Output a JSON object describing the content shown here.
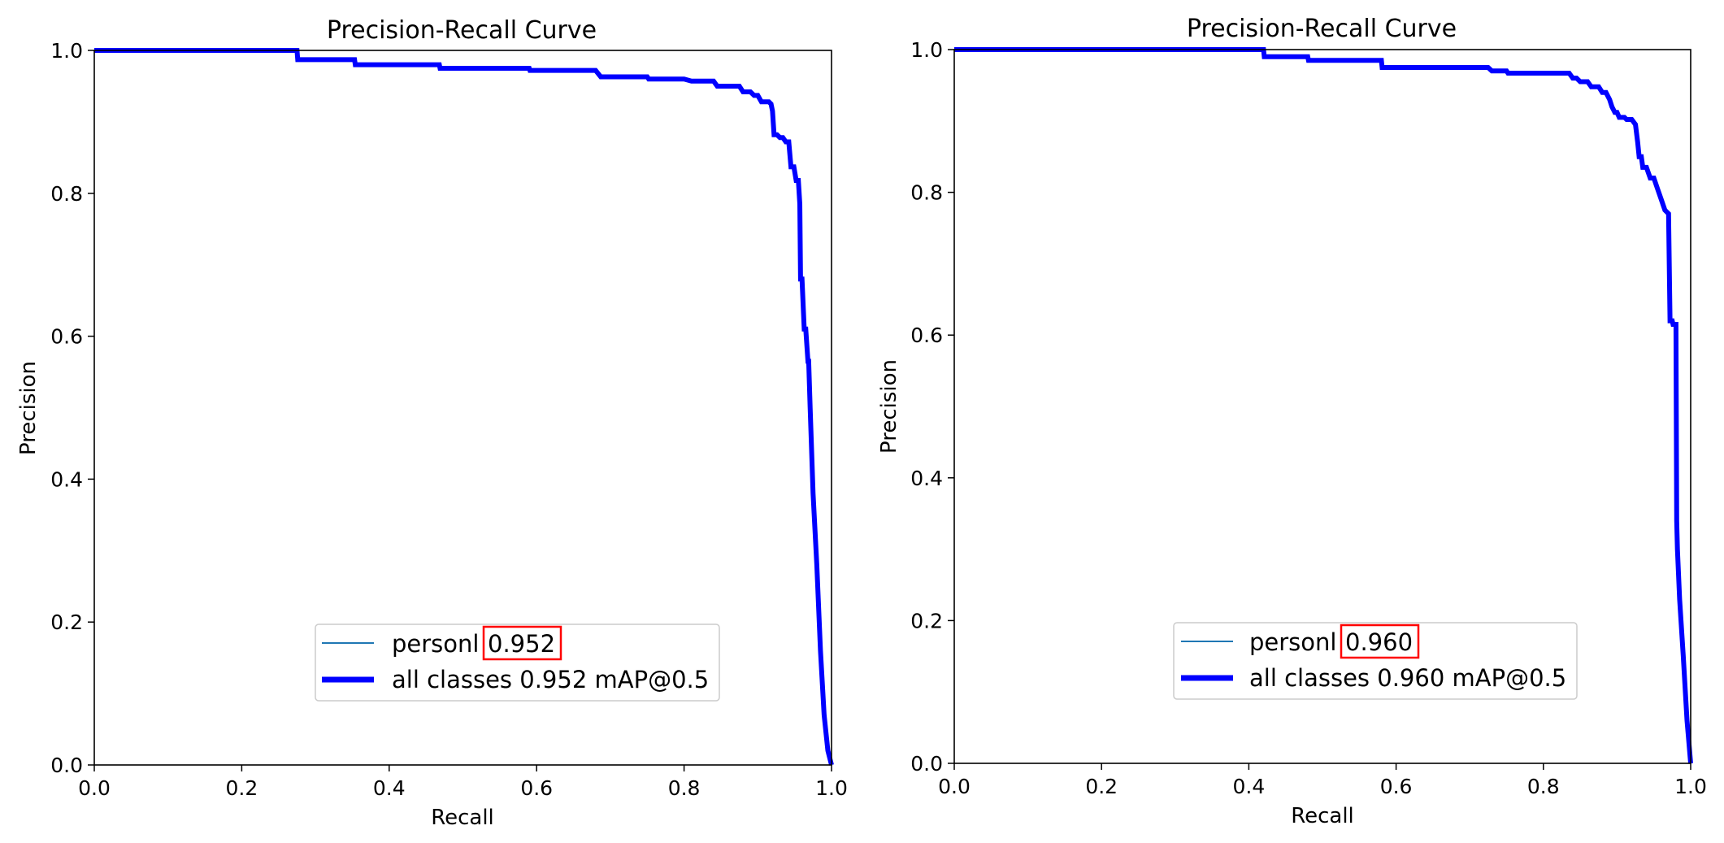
{
  "chart_data": [
    {
      "type": "line",
      "title": "Precision-Recall Curve",
      "xlabel": "Recall",
      "ylabel": "Precision",
      "xlim": [
        0.0,
        1.0
      ],
      "ylim": [
        0.0,
        1.0
      ],
      "xticks": [
        "0.0",
        "0.2",
        "0.4",
        "0.6",
        "0.8",
        "1.0"
      ],
      "yticks": [
        "0.0",
        "0.2",
        "0.4",
        "0.6",
        "0.8",
        "1.0"
      ],
      "grid": false,
      "legend_position": "lower center",
      "legend": [
        {
          "label_prefix": "personl ",
          "label_value": "0.952",
          "value_highlighted": true,
          "color": "#1f77b4",
          "style": "thin"
        },
        {
          "label_prefix": "all classes 0.952 mAP@0.5",
          "label_value": "",
          "value_highlighted": false,
          "color": "#0000ff",
          "style": "thick"
        }
      ],
      "series": [
        {
          "name": "all classes 0.952 mAP@0.5",
          "color": "#0000ff",
          "x": [
            0.0,
            0.275,
            0.276,
            0.353,
            0.354,
            0.468,
            0.469,
            0.59,
            0.591,
            0.68,
            0.687,
            0.75,
            0.752,
            0.8,
            0.81,
            0.84,
            0.845,
            0.875,
            0.88,
            0.89,
            0.895,
            0.9,
            0.905,
            0.915,
            0.918,
            0.92,
            0.922,
            0.926,
            0.93,
            0.934,
            0.938,
            0.942,
            0.945,
            0.949,
            0.952,
            0.955,
            0.957,
            0.958,
            0.96,
            0.963,
            0.965,
            0.968,
            0.969,
            0.971,
            0.975,
            0.98,
            0.985,
            0.99,
            0.995,
            1.0
          ],
          "y": [
            1.0,
            1.0,
            0.987,
            0.987,
            0.98,
            0.98,
            0.975,
            0.975,
            0.972,
            0.972,
            0.963,
            0.963,
            0.96,
            0.96,
            0.957,
            0.957,
            0.95,
            0.95,
            0.942,
            0.942,
            0.937,
            0.937,
            0.928,
            0.928,
            0.925,
            0.915,
            0.882,
            0.882,
            0.878,
            0.878,
            0.872,
            0.872,
            0.837,
            0.837,
            0.818,
            0.818,
            0.785,
            0.68,
            0.68,
            0.61,
            0.61,
            0.565,
            0.565,
            0.5,
            0.38,
            0.28,
            0.16,
            0.07,
            0.02,
            0.0
          ]
        }
      ]
    },
    {
      "type": "line",
      "title": "Precision-Recall Curve",
      "xlabel": "Recall",
      "ylabel": "Precision",
      "xlim": [
        0.0,
        1.0
      ],
      "ylim": [
        0.0,
        1.0
      ],
      "xticks": [
        "0.0",
        "0.2",
        "0.4",
        "0.6",
        "0.8",
        "1.0"
      ],
      "yticks": [
        "0.0",
        "0.2",
        "0.4",
        "0.6",
        "0.8",
        "1.0"
      ],
      "grid": false,
      "legend_position": "lower center",
      "legend": [
        {
          "label_prefix": "personl ",
          "label_value": "0.960",
          "value_highlighted": true,
          "color": "#1f77b4",
          "style": "thin"
        },
        {
          "label_prefix": "all classes 0.960 mAP@0.5",
          "label_value": "",
          "value_highlighted": false,
          "color": "#0000ff",
          "style": "thick"
        }
      ],
      "series": [
        {
          "name": "all classes 0.960 mAP@0.5",
          "color": "#0000ff",
          "x": [
            0.0,
            0.42,
            0.421,
            0.48,
            0.481,
            0.58,
            0.581,
            0.725,
            0.73,
            0.75,
            0.752,
            0.835,
            0.84,
            0.845,
            0.85,
            0.86,
            0.865,
            0.875,
            0.88,
            0.885,
            0.89,
            0.893,
            0.897,
            0.9,
            0.903,
            0.91,
            0.913,
            0.92,
            0.925,
            0.928,
            0.93,
            0.933,
            0.935,
            0.94,
            0.945,
            0.95,
            0.955,
            0.96,
            0.965,
            0.97,
            0.972,
            0.975,
            0.976,
            0.98,
            0.981,
            0.982,
            0.985,
            0.99,
            0.995,
            1.0
          ],
          "y": [
            1.0,
            1.0,
            0.99,
            0.99,
            0.985,
            0.985,
            0.975,
            0.975,
            0.97,
            0.97,
            0.967,
            0.967,
            0.96,
            0.96,
            0.955,
            0.955,
            0.948,
            0.948,
            0.94,
            0.94,
            0.93,
            0.92,
            0.912,
            0.912,
            0.905,
            0.905,
            0.902,
            0.902,
            0.895,
            0.87,
            0.85,
            0.85,
            0.835,
            0.835,
            0.82,
            0.82,
            0.805,
            0.79,
            0.775,
            0.77,
            0.62,
            0.62,
            0.615,
            0.615,
            0.34,
            0.3,
            0.23,
            0.15,
            0.06,
            0.0
          ]
        }
      ]
    }
  ]
}
